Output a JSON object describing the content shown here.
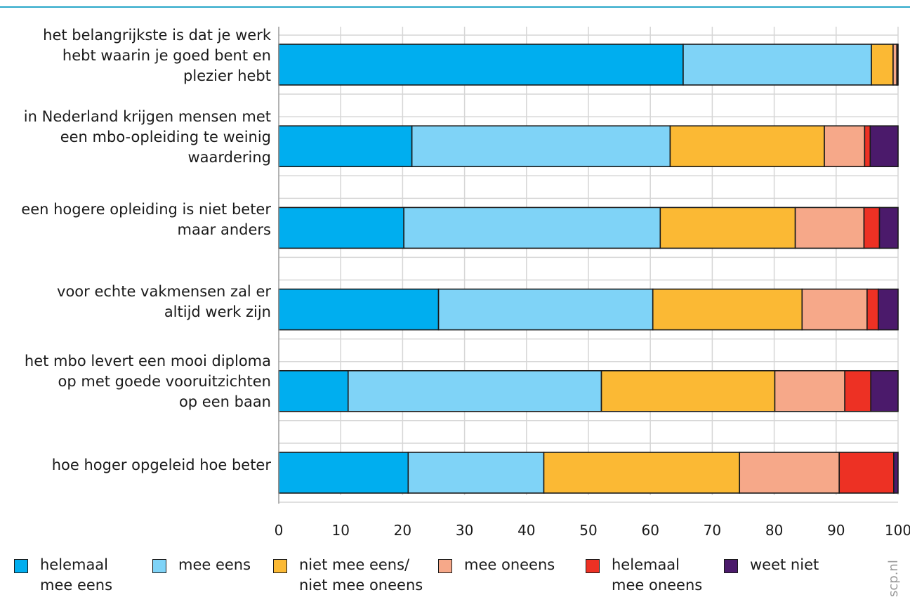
{
  "chart_data": {
    "type": "bar",
    "orientation": "horizontal",
    "stacked": true,
    "title": "",
    "xlabel": "",
    "ylabel": "",
    "xlim": [
      0,
      100
    ],
    "x_ticks": [
      0,
      10,
      20,
      30,
      40,
      50,
      60,
      70,
      80,
      90,
      100
    ],
    "grid": true,
    "legend_position": "bottom",
    "categories": [
      [
        "het belangrijkste is dat je werk",
        "hebt waarin je goed bent en",
        "plezier hebt"
      ],
      [
        "in Nederland krijgen mensen met",
        "een mbo-opleiding te weinig",
        "waardering"
      ],
      [
        "een hogere opleiding is niet beter",
        "maar anders"
      ],
      [
        "voor echte vakmensen zal er",
        "altijd werk zijn"
      ],
      [
        "het mbo levert een mooi diploma",
        "op met goede vooruitzichten",
        "op een baan"
      ],
      [
        "hoe hoger opgeleid hoe beter"
      ]
    ],
    "series": [
      {
        "name": [
          "helemaal",
          "mee eens"
        ],
        "color": "#00aeef",
        "values": [
          65.3,
          21.5,
          20.2,
          25.8,
          11.2,
          20.9
        ]
      },
      {
        "name": [
          "mee eens"
        ],
        "color": "#7fd3f7",
        "values": [
          30.4,
          41.7,
          41.4,
          34.6,
          40.9,
          21.9
        ]
      },
      {
        "name": [
          "niet mee eens/",
          "niet mee oneens"
        ],
        "color": "#fbb934",
        "values": [
          3.5,
          24.9,
          21.8,
          24.1,
          28.0,
          31.6
        ]
      },
      {
        "name": [
          "mee oneens"
        ],
        "color": "#f6a889",
        "values": [
          0.6,
          6.5,
          11.1,
          10.5,
          11.3,
          16.1
        ]
      },
      {
        "name": [
          "helemaal",
          "mee oneens"
        ],
        "color": "#ed3124",
        "values": [
          0.1,
          0.9,
          2.5,
          1.8,
          4.2,
          8.8
        ]
      },
      {
        "name": [
          "weet niet"
        ],
        "color": "#4b1a6b",
        "values": [
          0.1,
          4.5,
          3.0,
          3.2,
          4.4,
          0.7
        ]
      }
    ]
  },
  "watermark": "scp.nl"
}
